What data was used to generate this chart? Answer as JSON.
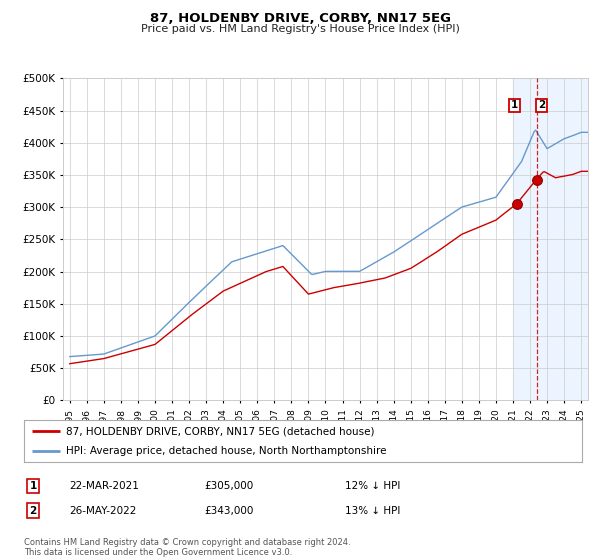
{
  "title": "87, HOLDENBY DRIVE, CORBY, NN17 5EG",
  "subtitle": "Price paid vs. HM Land Registry's House Price Index (HPI)",
  "legend_line1": "87, HOLDENBY DRIVE, CORBY, NN17 5EG (detached house)",
  "legend_line2": "HPI: Average price, detached house, North Northamptonshire",
  "annotation1_date": "22-MAR-2021",
  "annotation1_price": "£305,000",
  "annotation1_hpi": "12% ↓ HPI",
  "annotation2_date": "26-MAY-2022",
  "annotation2_price": "£343,000",
  "annotation2_hpi": "13% ↓ HPI",
  "footer": "Contains HM Land Registry data © Crown copyright and database right 2024.\nThis data is licensed under the Open Government Licence v3.0.",
  "red_color": "#cc0000",
  "blue_color": "#6699cc",
  "highlight_color": "#ddeeff",
  "grid_color": "#cccccc",
  "bg_color": "#ffffff",
  "ylim": [
    0,
    500000
  ],
  "yticks": [
    0,
    50000,
    100000,
    150000,
    200000,
    250000,
    300000,
    350000,
    400000,
    450000,
    500000
  ],
  "sale1_x": 2021.22,
  "sale1_y": 305000,
  "sale2_x": 2022.4,
  "sale2_y": 343000,
  "highlight_start": 2021.0,
  "xmin": 1994.6,
  "xmax": 2025.4
}
